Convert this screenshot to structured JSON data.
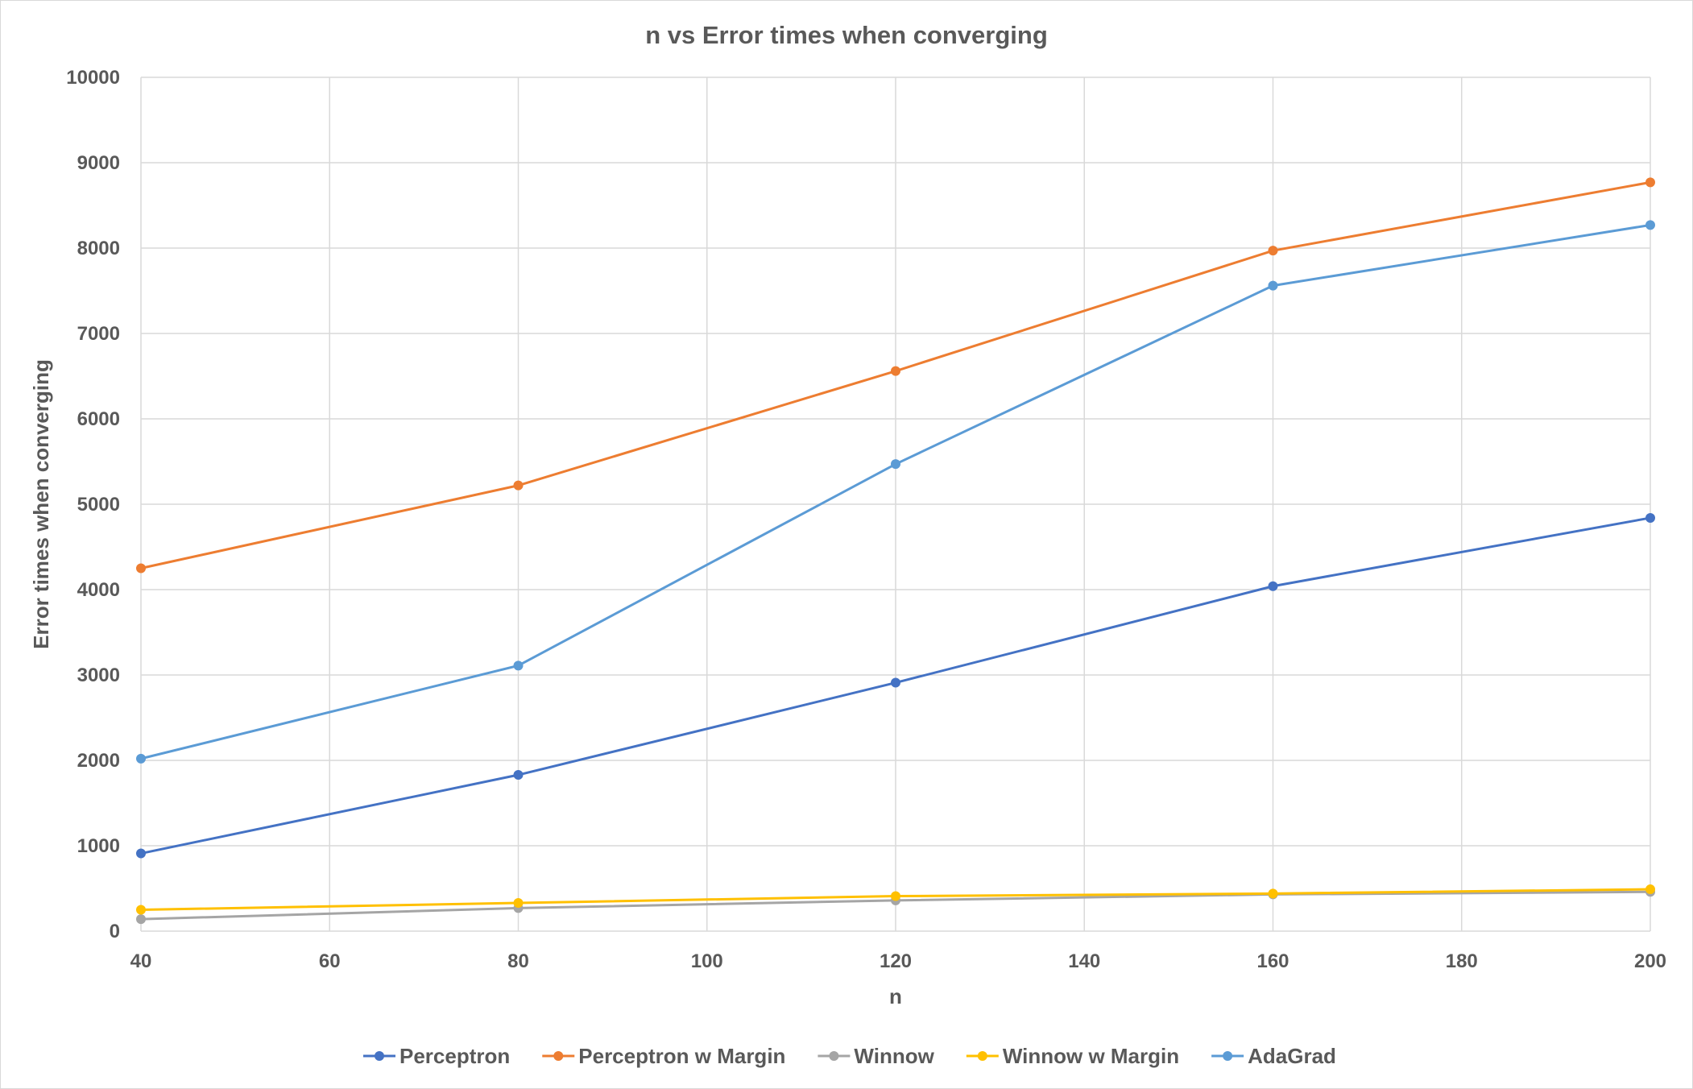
{
  "chart_data": {
    "type": "line",
    "title": "n vs Error times when converging",
    "xlabel": "n",
    "ylabel": "Error times when converging",
    "x": [
      40,
      80,
      120,
      160,
      200
    ],
    "xlim": [
      40,
      200
    ],
    "xticks": [
      "40",
      "60",
      "80",
      "100",
      "120",
      "140",
      "160",
      "180",
      "200"
    ],
    "ylim": [
      0,
      10000
    ],
    "yticks": [
      "0",
      "1000",
      "2000",
      "3000",
      "4000",
      "5000",
      "6000",
      "7000",
      "8000",
      "9000",
      "10000"
    ],
    "grid": true,
    "legend_position": "bottom",
    "series": [
      {
        "name": "Perceptron",
        "color": "#4472C4",
        "values": [
          910,
          1830,
          2910,
          4040,
          4840
        ]
      },
      {
        "name": "Perceptron w Margin",
        "color": "#ED7D31",
        "values": [
          4250,
          5220,
          6560,
          7970,
          8770
        ]
      },
      {
        "name": "Winnow",
        "color": "#A5A5A5",
        "values": [
          140,
          270,
          360,
          430,
          460
        ]
      },
      {
        "name": "Winnow w Margin",
        "color": "#FFC000",
        "values": [
          250,
          330,
          410,
          440,
          490
        ]
      },
      {
        "name": "AdaGrad",
        "color": "#5B9BD5",
        "values": [
          2020,
          3110,
          5470,
          7560,
          8270
        ]
      }
    ]
  }
}
